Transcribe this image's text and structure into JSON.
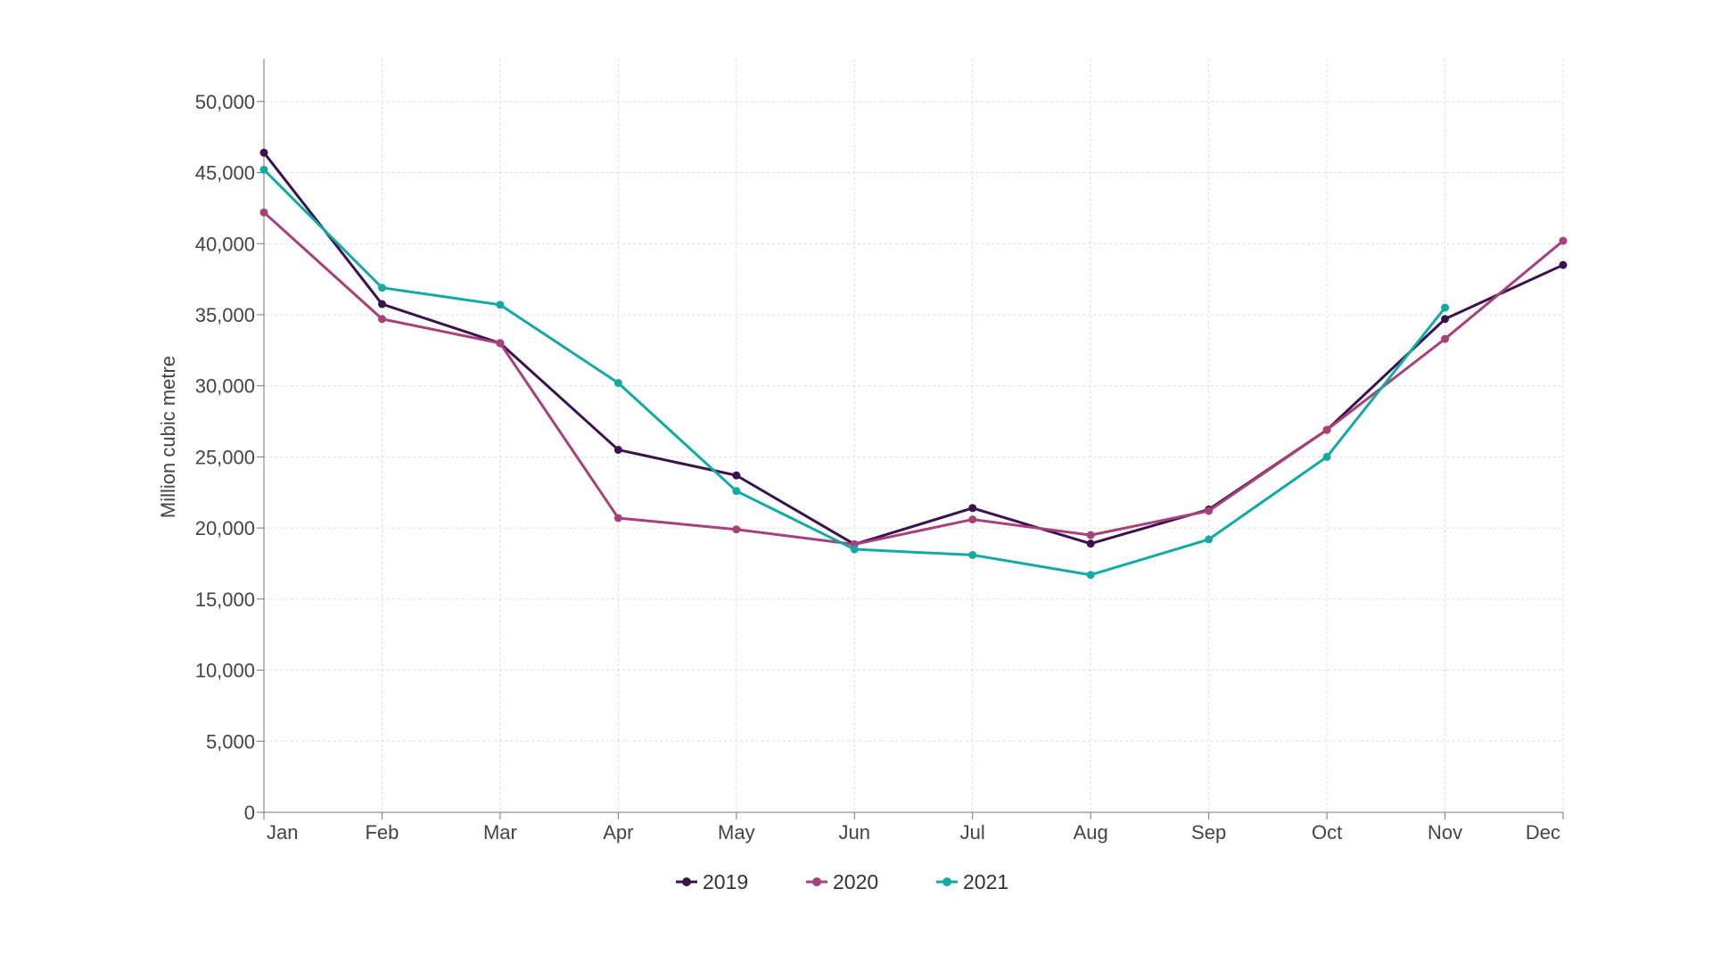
{
  "chart_data": {
    "type": "line",
    "title": "",
    "xlabel": "",
    "ylabel": "Million cubic metre",
    "categories": [
      "Jan",
      "Feb",
      "Mar",
      "Apr",
      "May",
      "Jun",
      "Jul",
      "Aug",
      "Sep",
      "Oct",
      "Nov",
      "Dec"
    ],
    "ylim": [
      0,
      53000
    ],
    "yticks": [
      0,
      5000,
      10000,
      15000,
      20000,
      25000,
      30000,
      35000,
      40000,
      45000,
      50000
    ],
    "ytick_labels": [
      "0",
      "5,000",
      "10,000",
      "15,000",
      "20,000",
      "25,000",
      "30,000",
      "35,000",
      "40,000",
      "45,000",
      "50,000"
    ],
    "grid": true,
    "legend_position": "bottom-center",
    "series": [
      {
        "name": "2019",
        "color": "#3b1250",
        "values": [
          46400,
          35750,
          33000,
          25500,
          23700,
          18850,
          21400,
          18900,
          21300,
          26900,
          34700,
          38500
        ]
      },
      {
        "name": "2020",
        "color": "#a8407a",
        "values": [
          42200,
          34700,
          33000,
          20700,
          19900,
          18850,
          20600,
          19500,
          21200,
          26900,
          33300,
          40200
        ]
      },
      {
        "name": "2021",
        "color": "#13aaa5",
        "values": [
          45200,
          36900,
          35700,
          30200,
          22600,
          18500,
          18100,
          16700,
          19200,
          25000,
          35500,
          null
        ]
      }
    ]
  }
}
